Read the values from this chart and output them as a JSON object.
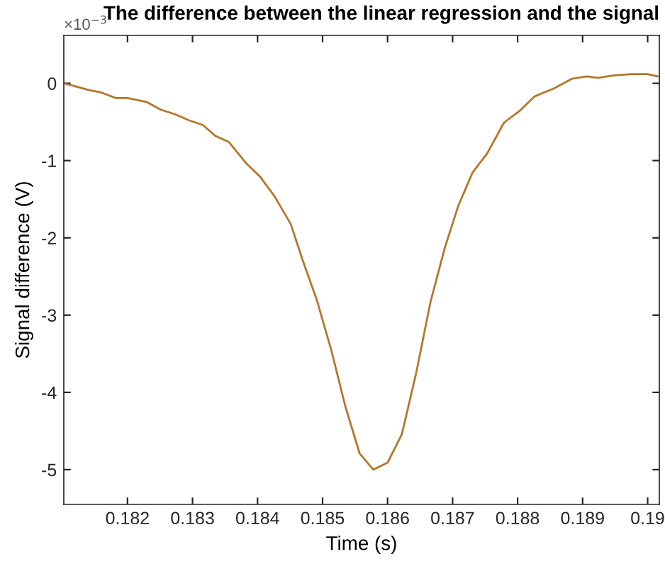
{
  "chart_data": {
    "type": "line",
    "title": "The difference between the linear regression and the signal",
    "xlabel": "Time (s)",
    "ylabel": "Signal difference (V)",
    "annotations": [
      "×10$^{−3}$"
    ],
    "x": [
      0.18102,
      0.18142,
      0.1816,
      0.18182,
      0.182,
      0.18229,
      0.18251,
      0.18273,
      0.18295,
      0.18316,
      0.18335,
      0.18356,
      0.18382,
      0.18404,
      0.18426,
      0.18451,
      0.18469,
      0.18491,
      0.18513,
      0.18535,
      0.18557,
      0.18578,
      0.186,
      0.18622,
      0.18644,
      0.18666,
      0.18688,
      0.18709,
      0.18731,
      0.18753,
      0.18779,
      0.18804,
      0.18826,
      0.18855,
      0.18884,
      0.18906,
      0.18924,
      0.18946,
      0.18975,
      0.19,
      0.19015
    ],
    "series": [
      {
        "color": "#b5762a",
        "values": [
          0,
          -0.09,
          -0.12,
          -0.19,
          -0.19,
          -0.24,
          -0.34,
          -0.4,
          -0.48,
          -0.54,
          -0.68,
          -0.76,
          -1.03,
          -1.21,
          -1.46,
          -1.82,
          -2.28,
          -2.8,
          -3.44,
          -4.18,
          -4.79,
          -5.0,
          -4.91,
          -4.54,
          -3.75,
          -2.83,
          -2.13,
          -1.58,
          -1.15,
          -0.91,
          -0.51,
          -0.35,
          -0.17,
          -0.07,
          0.06,
          0.09,
          0.07,
          0.1,
          0.12,
          0.12,
          0.09
        ]
      }
    ],
    "xlim": [
      0.18102,
      0.19018
    ],
    "ylim": [
      -5.45,
      0.62
    ],
    "xticks": [
      0.182,
      0.183,
      0.184,
      0.185,
      0.186,
      0.187,
      0.188,
      0.189,
      0.19
    ],
    "yticks": [
      -5,
      -4,
      -3,
      -2,
      -1,
      0
    ],
    "grid": false,
    "legend": false,
    "marker": "none",
    "line_style": "solid"
  }
}
